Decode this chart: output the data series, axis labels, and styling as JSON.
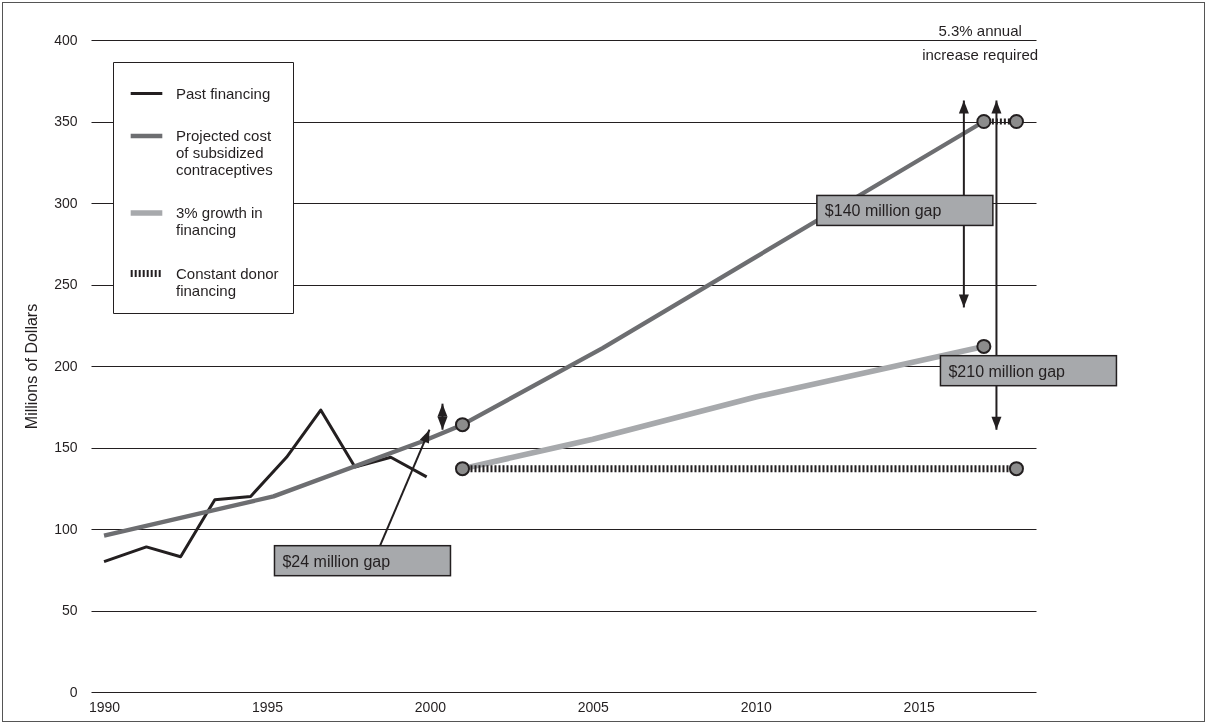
{
  "chart_data": {
    "type": "line",
    "ylabel": "Millions of Dollars",
    "xlim": [
      1989.6,
      2018.6
    ],
    "xticks": [
      1990,
      1995,
      2000,
      2005,
      2010,
      2015
    ],
    "ylim": [
      0,
      400
    ],
    "yticks": [
      0,
      50,
      100,
      150,
      200,
      250,
      300,
      350,
      400
    ],
    "grid": "y",
    "legend": "top left",
    "series": [
      {
        "name": "Past financing",
        "color": "#231f20",
        "line_style": "solid",
        "x": [
          1990,
          1991.3,
          1992.35,
          1993.4,
          1994.5,
          1995.6,
          1996.65,
          1997.7,
          1998.8,
          1999.9
        ],
        "values": [
          80,
          89,
          83,
          118,
          120,
          144,
          173,
          138,
          144,
          132
        ]
      },
      {
        "name": "Projected cost of subsidized contraceptives",
        "color": "#6d6e71",
        "line_style": "solid",
        "x": [
          1990,
          1995.2,
          1999.8,
          2001,
          2005.3,
          2017
        ],
        "values": [
          96,
          120,
          154,
          164,
          211,
          350
        ]
      },
      {
        "name": "3% growth in financing",
        "color": "#a7a9ac",
        "line_style": "solid",
        "x": [
          2001,
          2005,
          2010,
          2017
        ],
        "values": [
          137,
          155,
          181,
          212
        ]
      },
      {
        "name": "Constant donor financing",
        "color": "#231f20",
        "line_style": "dotted",
        "x": [
          2001,
          2018
        ],
        "values": [
          137,
          137
        ]
      },
      {
        "type": "line",
        "color": "#231f20",
        "line_style": "dotted",
        "x": [
          2017,
          2018
        ],
        "values": [
          350,
          350
        ]
      },
      {
        "type": "scatter",
        "color": "#8c8c8c",
        "marker": "circle",
        "x": [
          2001,
          2001,
          2017,
          2017,
          2018,
          2018
        ],
        "values": [
          164,
          137,
          350,
          212,
          350,
          137
        ]
      }
    ],
    "annotations": [
      "$24 million gap",
      "$140 million gap",
      "$210 million gap",
      "5.3% annual increase required"
    ]
  }
}
